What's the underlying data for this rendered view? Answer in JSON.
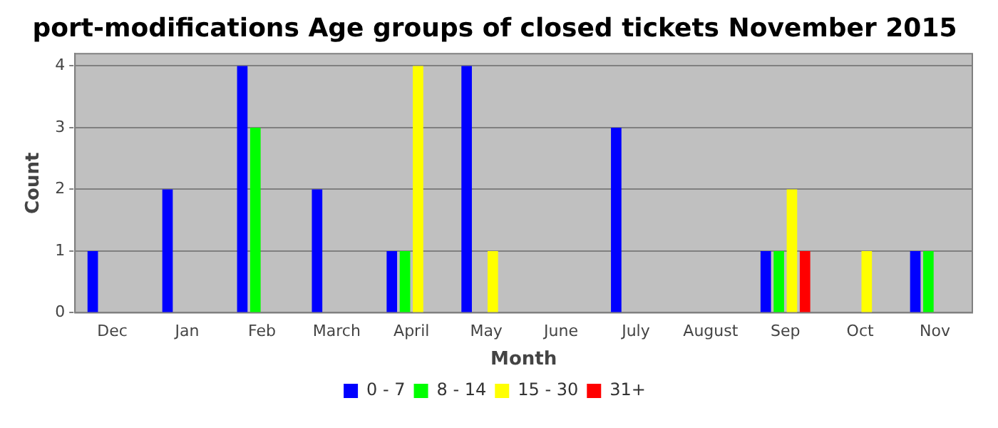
{
  "chart_data": {
    "type": "bar",
    "title": "port-modifications Age groups of closed tickets November 2015",
    "xlabel": "Month",
    "ylabel": "Count",
    "categories": [
      "Dec",
      "Jan",
      "Feb",
      "March",
      "April",
      "May",
      "June",
      "July",
      "August",
      "Sep",
      "Oct",
      "Nov"
    ],
    "series": [
      {
        "name": "0 - 7",
        "color": "#0000ff",
        "values": [
          1,
          2,
          4,
          2,
          1,
          4,
          0,
          3,
          0,
          1,
          0,
          1
        ]
      },
      {
        "name": "8 - 14",
        "color": "#00ff00",
        "values": [
          0,
          0,
          3,
          0,
          1,
          0,
          0,
          0,
          0,
          1,
          0,
          1
        ]
      },
      {
        "name": "15 - 30",
        "color": "#ffff00",
        "values": [
          0,
          0,
          0,
          0,
          4,
          1,
          0,
          0,
          0,
          2,
          1,
          0
        ]
      },
      {
        "name": "31+",
        "color": "#ff0000",
        "values": [
          0,
          0,
          0,
          0,
          0,
          0,
          0,
          0,
          0,
          1,
          0,
          0
        ]
      }
    ],
    "ylim": [
      0,
      4.2
    ],
    "yticks": [
      0,
      1,
      2,
      3,
      4
    ],
    "grid": "y",
    "legend": "bottom"
  }
}
